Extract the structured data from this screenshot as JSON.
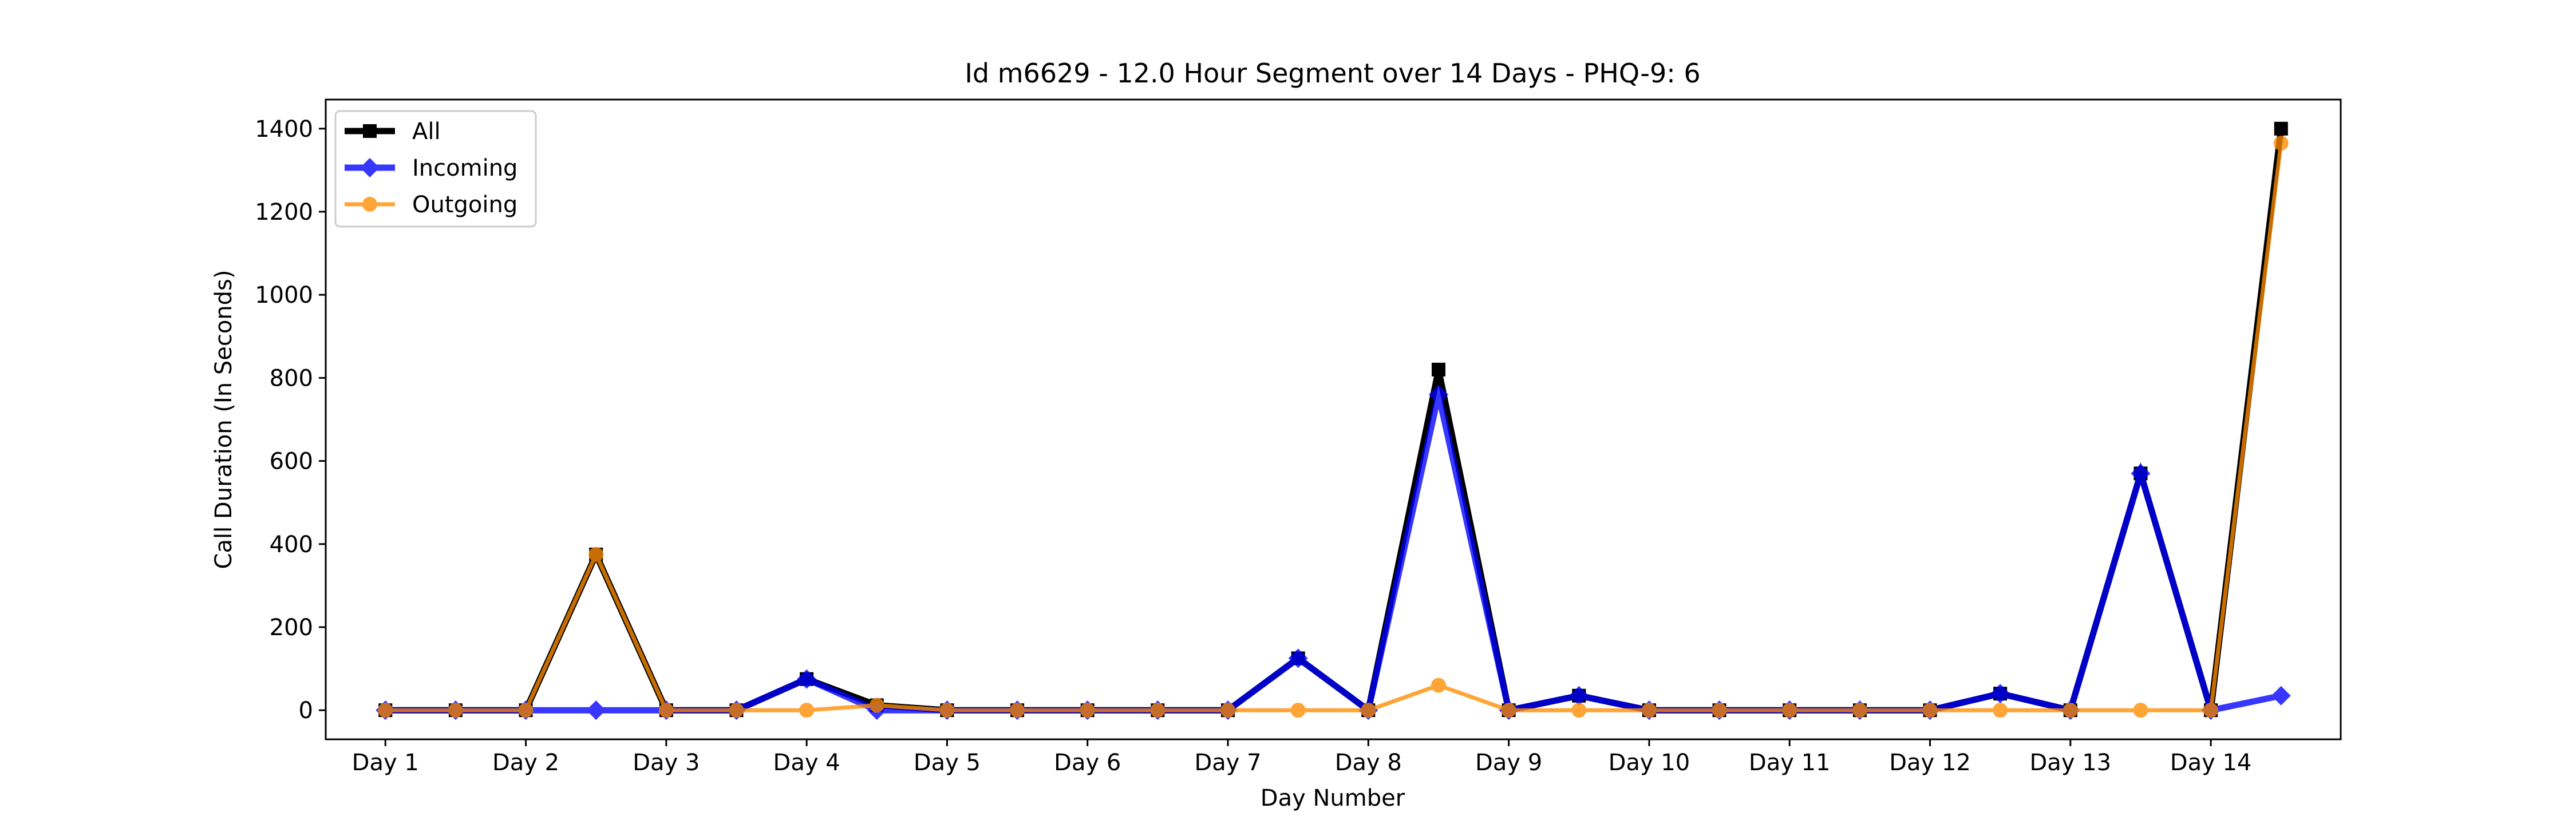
{
  "chart_data": {
    "type": "line",
    "title": "Id m6629 - 12.0 Hour Segment over 14 Days - PHQ-9: 6",
    "xlabel": "Day Number",
    "ylabel": "Call Duration (In Seconds)",
    "x_tick_labels": [
      "Day 1",
      "Day 2",
      "Day 3",
      "Day 4",
      "Day 5",
      "Day 6",
      "Day 7",
      "Day 8",
      "Day 9",
      "Day 10",
      "Day 11",
      "Day 12",
      "Day 13",
      "Day 14"
    ],
    "y_ticks": [
      0,
      200,
      400,
      600,
      800,
      1000,
      1200,
      1400
    ],
    "ylim": [
      -70,
      1470
    ],
    "xlim": [
      -0.85,
      27.85
    ],
    "grid": false,
    "legend_position": "top-left",
    "series": [
      {
        "name": "All",
        "color": "#000000",
        "marker": "square",
        "values": [
          0,
          0,
          0,
          375,
          0,
          0,
          75,
          12,
          0,
          0,
          0,
          0,
          0,
          125,
          0,
          820,
          0,
          35,
          0,
          0,
          0,
          0,
          0,
          40,
          0,
          570,
          0,
          1400
        ]
      },
      {
        "name": "Incoming",
        "color": "#0000ff",
        "marker": "diamond",
        "values": [
          0,
          0,
          0,
          0,
          0,
          0,
          75,
          0,
          0,
          0,
          0,
          0,
          0,
          125,
          0,
          760,
          0,
          35,
          0,
          0,
          0,
          0,
          0,
          40,
          0,
          570,
          0,
          35
        ]
      },
      {
        "name": "Outgoing",
        "color": "#ff8c00",
        "marker": "circle",
        "values": [
          0,
          0,
          0,
          375,
          0,
          0,
          0,
          12,
          0,
          0,
          0,
          0,
          0,
          0,
          0,
          60,
          0,
          0,
          0,
          0,
          0,
          0,
          0,
          0,
          0,
          0,
          0,
          1365
        ]
      }
    ]
  }
}
